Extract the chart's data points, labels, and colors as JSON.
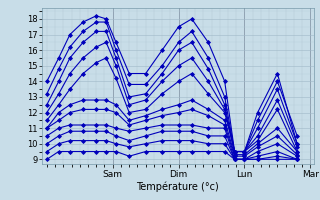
{
  "xlabel": "Température (°c)",
  "ylim": [
    8.7,
    18.7
  ],
  "yticks": [
    9,
    10,
    11,
    12,
    13,
    14,
    15,
    16,
    17,
    18
  ],
  "bg_color": "#c8dde8",
  "plot_bg_color": "#c8dde8",
  "line_color": "#0000bb",
  "marker": "D",
  "markersize": 2.0,
  "linewidth": 0.8,
  "day_labels": [
    "Sam",
    "Dim",
    "Lun",
    "Mar"
  ],
  "day_positions": [
    1.0,
    2.0,
    3.0,
    4.0
  ],
  "xlim": [
    -0.08,
    4.05
  ],
  "series": [
    {
      "x": [
        0.0,
        0.18,
        0.35,
        0.55,
        0.75,
        0.9,
        1.05,
        1.25,
        1.5,
        1.75,
        2.0,
        2.2,
        2.45,
        2.7,
        2.85,
        3.0,
        3.2,
        3.5,
        3.8
      ],
      "y": [
        14.0,
        15.5,
        17.0,
        17.8,
        18.2,
        18.0,
        16.5,
        14.5,
        14.5,
        16.0,
        17.5,
        18.0,
        16.5,
        14.0,
        9.5,
        9.5,
        12.0,
        14.5,
        10.0
      ]
    },
    {
      "x": [
        0.0,
        0.18,
        0.35,
        0.55,
        0.75,
        0.9,
        1.05,
        1.25,
        1.5,
        1.75,
        2.0,
        2.2,
        2.45,
        2.7,
        2.85,
        3.0,
        3.2,
        3.5,
        3.8
      ],
      "y": [
        13.2,
        14.8,
        16.2,
        17.2,
        17.8,
        17.8,
        16.0,
        13.8,
        13.8,
        15.0,
        16.5,
        17.2,
        15.5,
        13.0,
        9.5,
        9.5,
        11.5,
        14.0,
        10.5
      ]
    },
    {
      "x": [
        0.0,
        0.18,
        0.35,
        0.55,
        0.75,
        0.9,
        1.05,
        1.25,
        1.5,
        1.75,
        2.0,
        2.2,
        2.45,
        2.7,
        2.85,
        3.0,
        3.2,
        3.5,
        3.8
      ],
      "y": [
        12.5,
        14.0,
        15.5,
        16.5,
        17.2,
        17.2,
        15.5,
        13.0,
        13.2,
        14.5,
        16.0,
        16.5,
        14.8,
        12.5,
        9.5,
        9.5,
        11.0,
        13.5,
        10.0
      ]
    },
    {
      "x": [
        0.0,
        0.18,
        0.35,
        0.55,
        0.75,
        0.9,
        1.05,
        1.25,
        1.5,
        1.75,
        2.0,
        2.2,
        2.45,
        2.7,
        2.85,
        3.0,
        3.2,
        3.5,
        3.8
      ],
      "y": [
        12.0,
        13.2,
        14.5,
        15.5,
        16.2,
        16.5,
        15.0,
        12.5,
        12.8,
        14.0,
        15.0,
        15.5,
        14.0,
        12.2,
        9.5,
        9.5,
        10.5,
        12.8,
        9.8
      ]
    },
    {
      "x": [
        0.0,
        0.18,
        0.35,
        0.55,
        0.75,
        0.9,
        1.05,
        1.25,
        1.5,
        1.75,
        2.0,
        2.2,
        2.45,
        2.7,
        2.85,
        3.0,
        3.2,
        3.5,
        3.8
      ],
      "y": [
        11.5,
        12.5,
        13.5,
        14.5,
        15.2,
        15.5,
        14.2,
        12.0,
        12.2,
        13.2,
        14.0,
        14.5,
        13.2,
        12.0,
        9.5,
        9.5,
        10.2,
        12.2,
        9.5
      ]
    },
    {
      "x": [
        0.0,
        0.18,
        0.35,
        0.55,
        0.75,
        0.9,
        1.05,
        1.25,
        1.5,
        1.75,
        2.0,
        2.2,
        2.45,
        2.7,
        2.85,
        3.0,
        3.2,
        3.5,
        3.8
      ],
      "y": [
        11.0,
        12.0,
        12.5,
        12.8,
        12.8,
        12.8,
        12.5,
        11.5,
        11.8,
        12.2,
        12.5,
        12.8,
        12.2,
        11.5,
        9.3,
        9.3,
        10.0,
        11.0,
        9.5
      ]
    },
    {
      "x": [
        0.0,
        0.18,
        0.35,
        0.55,
        0.75,
        0.9,
        1.05,
        1.25,
        1.5,
        1.75,
        2.0,
        2.2,
        2.45,
        2.7,
        2.85,
        3.0,
        3.2,
        3.5,
        3.8
      ],
      "y": [
        11.0,
        11.5,
        12.0,
        12.2,
        12.2,
        12.2,
        12.0,
        11.2,
        11.5,
        11.8,
        12.0,
        12.2,
        11.8,
        11.2,
        9.2,
        9.2,
        9.8,
        10.5,
        9.3
      ]
    },
    {
      "x": [
        0.0,
        0.18,
        0.35,
        0.55,
        0.75,
        0.9,
        1.05,
        1.25,
        1.5,
        1.75,
        2.0,
        2.2,
        2.45,
        2.7,
        2.85,
        3.0,
        3.2,
        3.5,
        3.8
      ],
      "y": [
        10.5,
        11.0,
        11.2,
        11.2,
        11.2,
        11.2,
        11.0,
        10.8,
        11.0,
        11.2,
        11.2,
        11.2,
        11.0,
        11.0,
        9.0,
        9.0,
        9.5,
        10.0,
        9.2
      ]
    },
    {
      "x": [
        0.0,
        0.18,
        0.35,
        0.55,
        0.75,
        0.9,
        1.05,
        1.25,
        1.5,
        1.75,
        2.0,
        2.2,
        2.45,
        2.7,
        2.85,
        3.0,
        3.2,
        3.5,
        3.8
      ],
      "y": [
        10.0,
        10.5,
        10.8,
        10.8,
        10.8,
        10.8,
        10.5,
        10.2,
        10.5,
        10.8,
        10.8,
        10.8,
        10.5,
        10.5,
        9.0,
        9.0,
        9.2,
        9.5,
        9.0
      ]
    },
    {
      "x": [
        0.0,
        0.18,
        0.35,
        0.55,
        0.75,
        0.9,
        1.05,
        1.25,
        1.5,
        1.75,
        2.0,
        2.2,
        2.45,
        2.7,
        2.85,
        3.0,
        3.2,
        3.5,
        3.8
      ],
      "y": [
        9.5,
        10.0,
        10.2,
        10.2,
        10.2,
        10.2,
        10.0,
        9.8,
        10.0,
        10.2,
        10.2,
        10.2,
        10.0,
        10.0,
        9.0,
        9.0,
        9.0,
        9.2,
        9.0
      ]
    },
    {
      "x": [
        0.0,
        0.18,
        0.35,
        0.55,
        0.75,
        0.9,
        1.05,
        1.25,
        1.5,
        1.75,
        2.0,
        2.2,
        2.45,
        2.7,
        2.85,
        3.0,
        3.2,
        3.5,
        3.8
      ],
      "y": [
        9.0,
        9.5,
        9.5,
        9.5,
        9.5,
        9.5,
        9.5,
        9.2,
        9.5,
        9.5,
        9.5,
        9.5,
        9.5,
        9.5,
        9.0,
        9.0,
        9.0,
        9.0,
        9.0
      ]
    }
  ]
}
